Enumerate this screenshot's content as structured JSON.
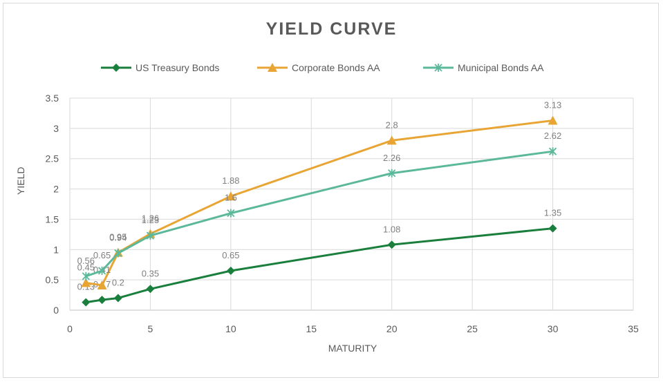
{
  "chart_data": {
    "type": "line",
    "title": "YIELD CURVE",
    "xlabel": "MATURITY",
    "ylabel": "YIELD",
    "xlim": [
      0,
      35
    ],
    "ylim": [
      0,
      3.5
    ],
    "x_ticks": [
      "0",
      "5",
      "10",
      "15",
      "20",
      "25",
      "30",
      "35"
    ],
    "y_ticks": [
      "0",
      "0.5",
      "1",
      "1.5",
      "2",
      "2.5",
      "3",
      "3.5"
    ],
    "grid": true,
    "legend_position": "top",
    "series": [
      {
        "name": "US Treasury Bonds",
        "color": "#1a7f3c",
        "marker": "diamond",
        "x": [
          1,
          2,
          3,
          5,
          10,
          20,
          30
        ],
        "values": [
          0.13,
          0.17,
          0.2,
          0.35,
          0.65,
          1.08,
          1.35
        ]
      },
      {
        "name": "Corporate Bonds AA",
        "color": "#e8a534",
        "marker": "triangle",
        "x": [
          1,
          2,
          3,
          5,
          10,
          20,
          30
        ],
        "values": [
          0.45,
          0.41,
          0.95,
          1.26,
          1.88,
          2.8,
          3.13
        ]
      },
      {
        "name": "Municipal Bonds AA",
        "color": "#5bb89a",
        "marker": "star",
        "x": [
          1,
          2,
          3,
          5,
          10,
          20,
          30
        ],
        "values": [
          0.56,
          0.65,
          0.94,
          1.23,
          1.6,
          2.26,
          2.62
        ]
      }
    ]
  }
}
